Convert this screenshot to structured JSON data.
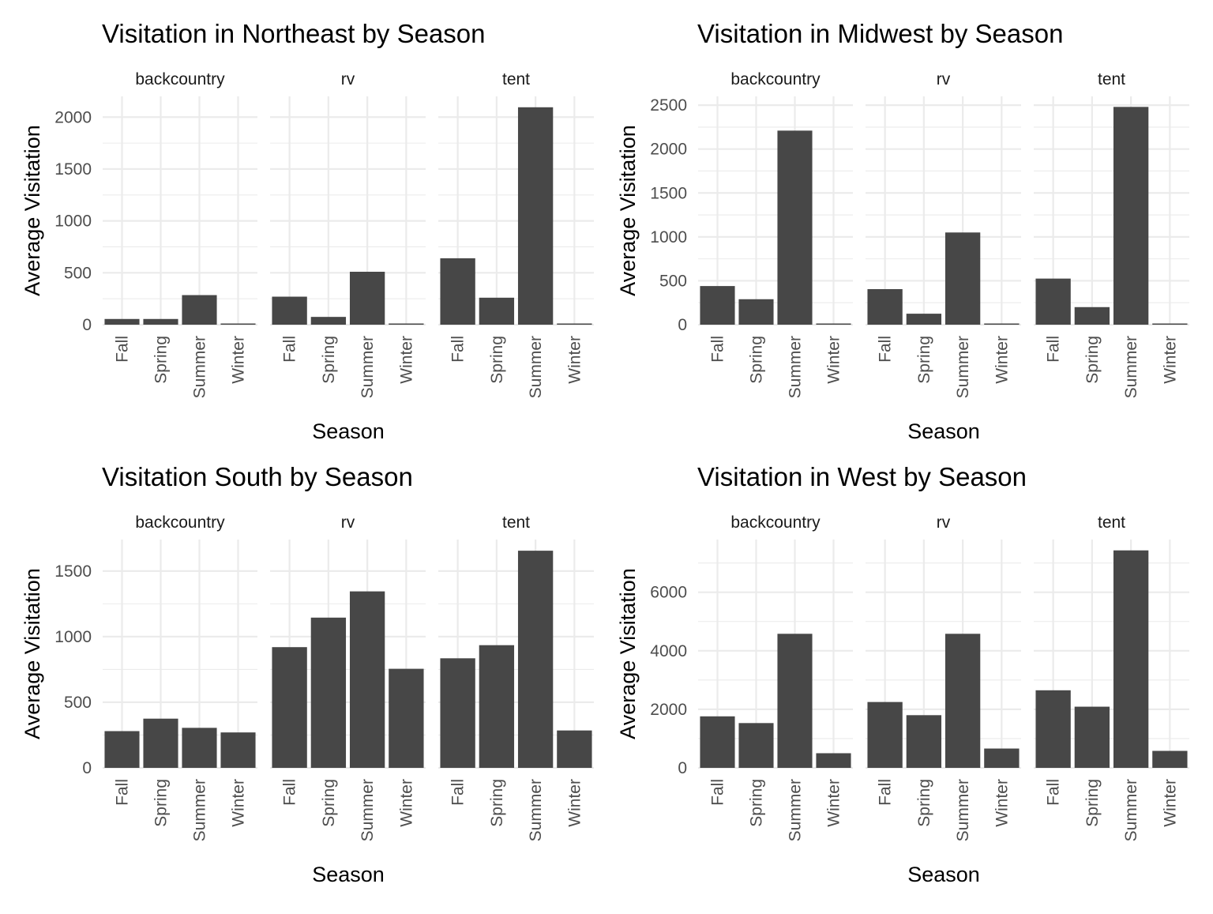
{
  "chart_data": [
    {
      "type": "bar",
      "title": "Visitation in Northeast by Season",
      "xlabel": "Season",
      "ylabel": "Average Visitation",
      "categories": [
        "Fall",
        "Spring",
        "Summer",
        "Winter"
      ],
      "ylim": [
        0,
        2200
      ],
      "yticks": [
        0,
        500,
        1000,
        1500,
        2000
      ],
      "grid": true,
      "bar_color": "#474747",
      "facets": [
        {
          "name": "backcountry",
          "values": [
            55,
            55,
            285,
            5
          ]
        },
        {
          "name": "rv",
          "values": [
            270,
            75,
            510,
            5
          ]
        },
        {
          "name": "tent",
          "values": [
            640,
            260,
            2095,
            10
          ]
        }
      ]
    },
    {
      "type": "bar",
      "title": "Visitation in Midwest by Season",
      "xlabel": "Season",
      "ylabel": "Average Visitation",
      "categories": [
        "Fall",
        "Spring",
        "Summer",
        "Winter"
      ],
      "ylim": [
        0,
        2600
      ],
      "yticks": [
        0,
        500,
        1000,
        1500,
        2000,
        2500
      ],
      "grid": true,
      "bar_color": "#474747",
      "facets": [
        {
          "name": "backcountry",
          "values": [
            440,
            290,
            2210,
            10
          ]
        },
        {
          "name": "rv",
          "values": [
            405,
            125,
            1050,
            10
          ]
        },
        {
          "name": "tent",
          "values": [
            525,
            200,
            2480,
            10
          ]
        }
      ]
    },
    {
      "type": "bar",
      "title": "Visitation South by Season",
      "xlabel": "Season",
      "ylabel": "Average Visitation",
      "categories": [
        "Fall",
        "Spring",
        "Summer",
        "Winter"
      ],
      "ylim": [
        0,
        1740
      ],
      "yticks": [
        0,
        500,
        1000,
        1500
      ],
      "grid": true,
      "bar_color": "#474747",
      "facets": [
        {
          "name": "backcountry",
          "values": [
            280,
            375,
            305,
            270
          ]
        },
        {
          "name": "rv",
          "values": [
            920,
            1145,
            1345,
            755
          ]
        },
        {
          "name": "tent",
          "values": [
            835,
            935,
            1655,
            285
          ]
        }
      ]
    },
    {
      "type": "bar",
      "title": "Visitation in West by Season",
      "xlabel": "Season",
      "ylabel": "Average Visitation",
      "categories": [
        "Fall",
        "Spring",
        "Summer",
        "Winter"
      ],
      "ylim": [
        0,
        7800
      ],
      "yticks": [
        0,
        2000,
        4000,
        6000
      ],
      "grid": true,
      "bar_color": "#474747",
      "facets": [
        {
          "name": "backcountry",
          "values": [
            1760,
            1530,
            4580,
            500
          ]
        },
        {
          "name": "rv",
          "values": [
            2250,
            1800,
            4580,
            660
          ]
        },
        {
          "name": "tent",
          "values": [
            2650,
            2090,
            7430,
            580
          ]
        }
      ]
    }
  ]
}
